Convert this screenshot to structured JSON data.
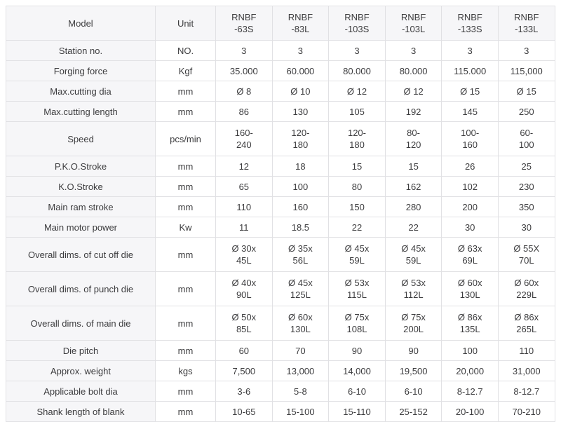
{
  "table": {
    "header": {
      "model_label": "Model",
      "unit_label": "Unit",
      "models": [
        "RNBF\n-63S",
        "RNBF\n-83L",
        "RNBF\n-103S",
        "RNBF\n-103L",
        "RNBF\n-133S",
        "RNBF\n-133L"
      ]
    },
    "rows": [
      {
        "label": "Station no.",
        "unit": "NO.",
        "values": [
          "3",
          "3",
          "3",
          "3",
          "3",
          "3"
        ]
      },
      {
        "label": "Forging force",
        "unit": "Kgf",
        "values": [
          "35.000",
          "60.000",
          "80.000",
          "80.000",
          "115.000",
          "115,000"
        ]
      },
      {
        "label": "Max.cutting dia",
        "unit": "mm",
        "values": [
          "Ø 8",
          "Ø 10",
          "Ø 12",
          "Ø 12",
          "Ø 15",
          "Ø 15"
        ]
      },
      {
        "label": "Max.cutting length",
        "unit": "mm",
        "values": [
          "86",
          "130",
          "105",
          "192",
          "145",
          "250"
        ]
      },
      {
        "label": "Speed",
        "unit": "pcs/min",
        "values": [
          "160-\n240",
          "120-\n180",
          "120-\n180",
          "80-\n120",
          "100-\n160",
          "60-\n100"
        ]
      },
      {
        "label": "P.K.O.Stroke",
        "unit": "mm",
        "values": [
          "12",
          "18",
          "15",
          "15",
          "26",
          "25"
        ]
      },
      {
        "label": "K.O.Stroke",
        "unit": "mm",
        "values": [
          "65",
          "100",
          "80",
          "162",
          "102",
          "230"
        ]
      },
      {
        "label": "Main ram stroke",
        "unit": "mm",
        "values": [
          "110",
          "160",
          "150",
          "280",
          "200",
          "350"
        ]
      },
      {
        "label": "Main motor power",
        "unit": "Kw",
        "values": [
          "11",
          "18.5",
          "22",
          "22",
          "30",
          "30"
        ]
      },
      {
        "label": "Overall dims. of cut off die",
        "unit": "mm",
        "values": [
          "Ø 30x\n45L",
          "Ø 35x\n56L",
          "Ø 45x\n59L",
          "Ø 45x\n59L",
          "Ø 63x\n69L",
          "Ø 55X\n70L"
        ]
      },
      {
        "label": "Overall dims. of punch die",
        "unit": "mm",
        "values": [
          "Ø 40x\n90L",
          "Ø 45x\n125L",
          "Ø 53x\n115L",
          "Ø 53x\n112L",
          "Ø 60x\n130L",
          "Ø 60x\n229L"
        ]
      },
      {
        "label": "Overall dims. of main die",
        "unit": "mm",
        "values": [
          "Ø 50x\n85L",
          "Ø 60x\n130L",
          "Ø 75x\n108L",
          "Ø 75x\n200L",
          "Ø 86x\n135L",
          "Ø 86x\n265L"
        ]
      },
      {
        "label": "Die pitch",
        "unit": "mm",
        "values": [
          "60",
          "70",
          "90",
          "90",
          "100",
          "110"
        ]
      },
      {
        "label": "Approx. weight",
        "unit": "kgs",
        "values": [
          "7,500",
          "13,000",
          "14,000",
          "19,500",
          "20,000",
          "31,000"
        ]
      },
      {
        "label": "Applicable bolt dia",
        "unit": "mm",
        "values": [
          "3-6",
          "5-8",
          "6-10",
          "6-10",
          "8-12.7",
          "8-12.7"
        ]
      },
      {
        "label": "Shank length of blank",
        "unit": "mm",
        "values": [
          "10-65",
          "15-100",
          "15-110",
          "25-152",
          "20-100",
          "70-210"
        ]
      }
    ],
    "colors": {
      "header_bg": "#f6f6f8",
      "label_column_bg": "#f6f6f8",
      "cell_bg": "#ffffff",
      "border": "#e1e1e4",
      "text": "#3c3c3e"
    }
  }
}
